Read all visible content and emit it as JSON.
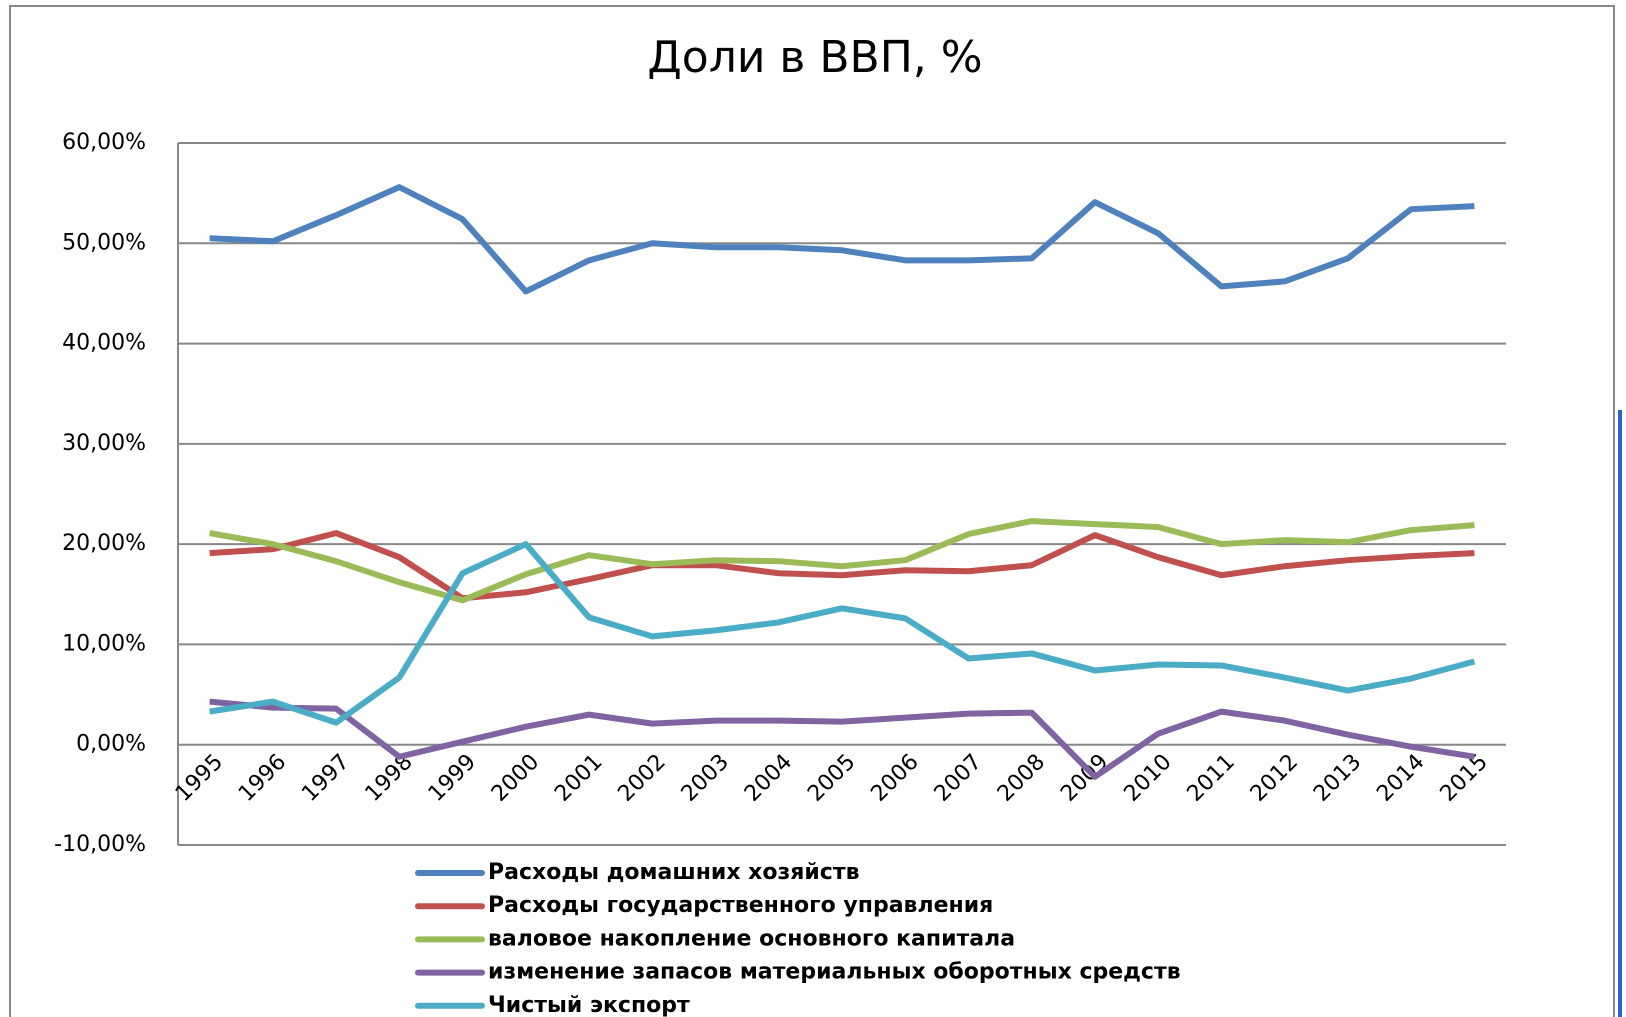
{
  "chart_data": {
    "type": "line",
    "title": "Доли в ВВП, %",
    "categories": [
      "1995",
      "1996",
      "1997",
      "1998",
      "1999",
      "2000",
      "2001",
      "2002",
      "2003",
      "2004",
      "2005",
      "2006",
      "2007",
      "2008",
      "2009",
      "2010",
      "2011",
      "2012",
      "2013",
      "2014",
      "2015"
    ],
    "series": [
      {
        "name": "Расходы домашних хозяйств",
        "color": "#4f81bd",
        "values": [
          50.5,
          50.2,
          52.8,
          55.6,
          52.4,
          45.2,
          48.3,
          50.0,
          49.6,
          49.6,
          49.3,
          48.3,
          48.3,
          48.5,
          54.1,
          51.0,
          45.7,
          46.2,
          48.5,
          53.4,
          53.7
        ]
      },
      {
        "name": "Расходы государственного управления",
        "color": "#c0504d",
        "values": [
          19.1,
          19.5,
          21.1,
          18.7,
          14.6,
          15.2,
          16.5,
          17.9,
          17.9,
          17.1,
          16.9,
          17.4,
          17.3,
          17.9,
          20.9,
          18.7,
          16.9,
          17.8,
          18.4,
          18.8,
          19.1
        ]
      },
      {
        "name": "валовое накопление основного капитала",
        "color": "#9bbb59",
        "values": [
          21.1,
          20.0,
          18.3,
          16.2,
          14.4,
          17.0,
          18.9,
          18.0,
          18.4,
          18.3,
          17.8,
          18.4,
          21.0,
          22.3,
          22.0,
          21.7,
          20.0,
          20.4,
          20.2,
          21.4,
          21.9
        ]
      },
      {
        "name": "изменение запасов материальных оборотных средств",
        "color": "#8064a2",
        "values": [
          4.3,
          3.7,
          3.6,
          -1.2,
          0.3,
          1.8,
          3.0,
          2.1,
          2.4,
          2.4,
          2.3,
          2.7,
          3.1,
          3.2,
          -3.2,
          1.1,
          3.3,
          2.4,
          1.0,
          -0.2,
          -1.2
        ]
      },
      {
        "name": "Чистый экспорт",
        "color": "#4bacc6",
        "values": [
          3.3,
          4.3,
          2.2,
          6.7,
          17.1,
          20.0,
          12.7,
          10.8,
          11.4,
          12.2,
          13.6,
          12.6,
          8.6,
          9.1,
          7.4,
          8.0,
          7.9,
          6.7,
          5.4,
          6.6,
          8.3
        ]
      }
    ],
    "ylim": [
      -10,
      60
    ],
    "yticks": [
      {
        "value": -10,
        "label": "-10,00%"
      },
      {
        "value": 0,
        "label": "0,00%"
      },
      {
        "value": 10,
        "label": "10,00%"
      },
      {
        "value": 20,
        "label": "20,00%"
      },
      {
        "value": 30,
        "label": "30,00%"
      },
      {
        "value": 40,
        "label": "40,00%"
      },
      {
        "value": 50,
        "label": "50,00%"
      },
      {
        "value": 60,
        "label": "60,00%"
      }
    ],
    "grid": true,
    "legend": "bottom"
  }
}
